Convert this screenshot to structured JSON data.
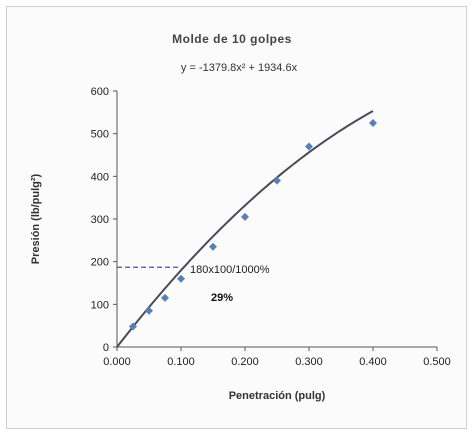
{
  "chart_data": {
    "type": "scatter",
    "title": "Molde de 10 golpes",
    "equation": "y = -1379.8x² + 1934.6x",
    "xlabel": "Penetración (pulg)",
    "ylabel": "Presión (lb/pulg²)",
    "xlim": [
      0,
      0.5
    ],
    "ylim": [
      0,
      600
    ],
    "x_ticks": [
      "0.000",
      "0.100",
      "0.200",
      "0.300",
      "0.400",
      "0.500"
    ],
    "y_ticks": [
      "0",
      "100",
      "200",
      "300",
      "400",
      "500",
      "600"
    ],
    "grid": false,
    "series": [
      {
        "x": [
          0.025,
          0.05,
          0.075,
          0.1,
          0.15,
          0.2,
          0.25,
          0.3,
          0.4
        ],
        "y": [
          48,
          85,
          115,
          160,
          235,
          305,
          390,
          470,
          525
        ],
        "color": "#5b7fb5"
      }
    ],
    "trendline": {
      "a": -1379.8,
      "b": 1934.6,
      "x_range": [
        0,
        0.4
      ],
      "color": "#4a4a58"
    },
    "reference_line": {
      "y": 187,
      "x_range": [
        0,
        0.1
      ]
    },
    "annotations": [
      "180x100/1000%",
      "29%"
    ]
  }
}
